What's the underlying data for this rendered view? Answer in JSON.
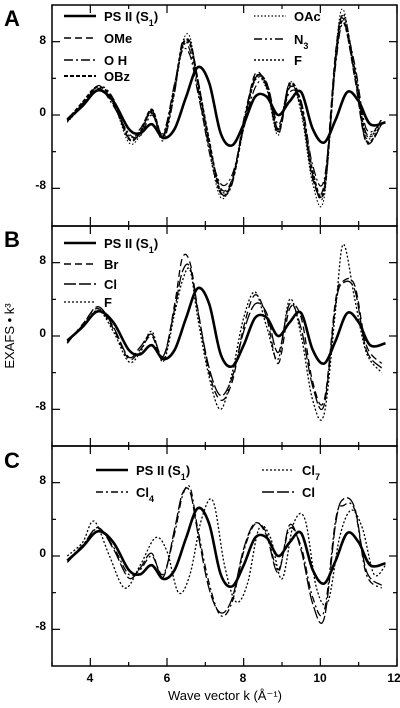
{
  "chart_data": [
    {
      "type": "line",
      "panel_label": "A",
      "xlim": [
        3,
        12
      ],
      "ylim": [
        -12,
        12
      ],
      "yticks": [
        "8",
        "0",
        "-8"
      ],
      "legend_placement": "top",
      "series": [
        {
          "name": "PS II (S₁)",
          "style": "solid-thick",
          "x": [
            3.4,
            3.8,
            4.2,
            4.6,
            5.0,
            5.3,
            5.6,
            5.9,
            6.2,
            6.5,
            6.8,
            7.1,
            7.4,
            7.7,
            8.0,
            8.3,
            8.6,
            8.9,
            9.2,
            9.5,
            9.8,
            10.1,
            10.4,
            10.7,
            11.0,
            11.3,
            11.7
          ],
          "y": [
            -0.5,
            1.0,
            2.7,
            1.5,
            -1.5,
            -2.0,
            -1.0,
            -2.5,
            -1.5,
            2.0,
            5.2,
            3.5,
            -2.0,
            -3.3,
            -1.0,
            2.0,
            2.0,
            0.0,
            1.5,
            2.5,
            -1.5,
            -3.0,
            -0.5,
            2.5,
            1.5,
            -1.0,
            -0.8
          ]
        },
        {
          "name": "OMe",
          "style": "dashed",
          "x": [
            3.4,
            3.8,
            4.2,
            4.6,
            5.0,
            5.3,
            5.6,
            5.9,
            6.2,
            6.4,
            6.6,
            6.8,
            7.1,
            7.4,
            7.7,
            8.0,
            8.3,
            8.6,
            8.9,
            9.2,
            9.5,
            9.8,
            10.1,
            10.4,
            10.6,
            10.9,
            11.2,
            11.6
          ],
          "y": [
            -0.6,
            1.2,
            2.9,
            1.2,
            -2.5,
            -2.0,
            0.5,
            -2.2,
            3.0,
            7.5,
            8.0,
            4.0,
            -3.0,
            -8.0,
            -7.0,
            -1.0,
            4.5,
            3.0,
            -2.0,
            3.0,
            1.0,
            -7.0,
            -7.5,
            7.0,
            10.5,
            4.0,
            -3.0,
            -1.0
          ]
        },
        {
          "name": "N₃",
          "style": "dash-dot-dot",
          "x": [
            3.4,
            3.8,
            4.2,
            4.6,
            5.0,
            5.3,
            5.6,
            5.9,
            6.2,
            6.4,
            6.6,
            6.8,
            7.1,
            7.4,
            7.7,
            8.0,
            8.3,
            8.6,
            8.9,
            9.2,
            9.5,
            9.8,
            10.1,
            10.4,
            10.6,
            10.9,
            11.2,
            11.6
          ],
          "y": [
            -0.7,
            1.0,
            3.2,
            1.8,
            -2.5,
            -1.5,
            0.3,
            -2.8,
            2.5,
            8.0,
            7.0,
            3.0,
            -4.0,
            -8.5,
            -7.5,
            -0.5,
            4.0,
            3.5,
            -1.5,
            3.5,
            0.5,
            -6.5,
            -8.5,
            6.0,
            11.0,
            5.0,
            -2.0,
            -0.5
          ]
        },
        {
          "name": "O H",
          "style": "long-dash-dot",
          "x": [
            3.4,
            3.8,
            4.2,
            4.6,
            5.0,
            5.3,
            5.6,
            5.9,
            6.2,
            6.4,
            6.6,
            6.8,
            7.1,
            7.4,
            7.7,
            8.0,
            8.3,
            8.6,
            8.9,
            9.2,
            9.5,
            9.8,
            10.1,
            10.4,
            10.6,
            10.9,
            11.2,
            11.6
          ],
          "y": [
            -0.4,
            1.3,
            3.0,
            1.0,
            -2.0,
            -2.3,
            0.0,
            -2.0,
            3.5,
            7.0,
            6.5,
            2.5,
            -3.5,
            -7.5,
            -6.5,
            -1.5,
            3.0,
            3.5,
            -1.0,
            2.5,
            1.5,
            -5.5,
            -7.0,
            5.5,
            10.0,
            5.5,
            -1.5,
            -0.8
          ]
        },
        {
          "name": "F",
          "style": "dotted",
          "x": [
            3.4,
            3.8,
            4.2,
            4.6,
            5.0,
            5.3,
            5.6,
            5.9,
            6.2,
            6.4,
            6.6,
            6.8,
            7.1,
            7.4,
            7.7,
            8.0,
            8.3,
            8.6,
            8.9,
            9.2,
            9.5,
            9.8,
            10.1,
            10.4,
            10.6,
            10.9,
            11.2,
            11.6
          ],
          "y": [
            -0.5,
            1.1,
            2.8,
            1.4,
            -2.2,
            -1.8,
            0.2,
            -2.4,
            2.8,
            7.2,
            7.6,
            3.5,
            -3.2,
            -8.2,
            -7.2,
            -1.0,
            3.8,
            3.2,
            -1.8,
            3.2,
            0.8,
            -6.8,
            -8.0,
            6.5,
            10.8,
            4.8,
            -2.2,
            -0.6
          ]
        },
        {
          "name": "OAc",
          "style": "fine-dotted",
          "x": [
            3.4,
            3.8,
            4.2,
            4.6,
            5.0,
            5.3,
            5.6,
            5.9,
            6.2,
            6.4,
            6.6,
            6.8,
            7.1,
            7.4,
            7.7,
            8.0,
            8.3,
            8.6,
            8.9,
            9.2,
            9.5,
            9.8,
            10.1,
            10.4,
            10.6,
            10.9,
            11.2,
            11.6
          ],
          "y": [
            -0.8,
            1.0,
            2.7,
            1.3,
            -3.0,
            -2.2,
            0.4,
            -2.6,
            2.6,
            7.8,
            8.5,
            3.2,
            -3.8,
            -9.0,
            -7.0,
            -0.8,
            4.2,
            2.8,
            -2.2,
            3.6,
            0.2,
            -7.5,
            -9.0,
            6.8,
            11.5,
            4.2,
            -2.5,
            -0.4
          ]
        },
        {
          "name": "OBz",
          "style": "heavy-dashed",
          "x": [
            3.4,
            3.8,
            4.2,
            4.6,
            5.0,
            5.3,
            5.6,
            5.9,
            6.2,
            6.4,
            6.6,
            6.8,
            7.1,
            7.4,
            7.7,
            8.0,
            8.3,
            8.6,
            8.9,
            9.2,
            9.5,
            9.8,
            10.1,
            10.4,
            10.6,
            10.9,
            11.2,
            11.6
          ],
          "y": [
            -0.6,
            1.4,
            3.1,
            1.6,
            -2.6,
            -1.9,
            0.6,
            -2.3,
            3.2,
            7.6,
            7.8,
            3.8,
            -2.8,
            -8.5,
            -7.3,
            -1.2,
            4.0,
            3.4,
            -1.6,
            3.4,
            1.2,
            -6.2,
            -8.2,
            6.2,
            10.2,
            4.5,
            -2.8,
            -0.9
          ]
        }
      ]
    },
    {
      "type": "line",
      "panel_label": "B",
      "xlim": [
        3,
        12
      ],
      "ylim": [
        -12,
        12
      ],
      "yticks": [
        "8",
        "0",
        "-8"
      ],
      "legend_placement": "top-left",
      "series": [
        {
          "name": "PS II (S₁)",
          "style": "solid-thick",
          "x": [
            3.4,
            3.8,
            4.2,
            4.6,
            5.0,
            5.3,
            5.6,
            5.9,
            6.2,
            6.5,
            6.8,
            7.1,
            7.4,
            7.7,
            8.0,
            8.3,
            8.6,
            8.9,
            9.2,
            9.5,
            9.8,
            10.1,
            10.4,
            10.7,
            11.0,
            11.3,
            11.7
          ],
          "y": [
            -0.5,
            1.0,
            2.7,
            1.5,
            -1.5,
            -2.0,
            -1.0,
            -2.5,
            -1.5,
            2.0,
            5.2,
            3.5,
            -2.0,
            -3.3,
            -1.0,
            2.0,
            2.0,
            0.0,
            1.5,
            2.5,
            -1.5,
            -3.0,
            -0.5,
            2.5,
            1.5,
            -1.0,
            -0.8
          ]
        },
        {
          "name": "Br",
          "style": "dashed",
          "x": [
            3.4,
            3.8,
            4.2,
            4.6,
            5.0,
            5.3,
            5.6,
            5.9,
            6.2,
            6.4,
            6.6,
            6.8,
            7.1,
            7.4,
            7.7,
            8.0,
            8.3,
            8.6,
            8.9,
            9.2,
            9.5,
            9.8,
            10.1,
            10.4,
            10.6,
            10.9,
            11.2,
            11.6
          ],
          "y": [
            -0.8,
            1.3,
            3.0,
            0.8,
            -2.5,
            -1.5,
            0.0,
            -2.5,
            3.5,
            8.5,
            8.0,
            3.0,
            -4.0,
            -7.0,
            -5.0,
            1.0,
            4.5,
            2.0,
            -3.0,
            3.0,
            2.0,
            -5.0,
            -7.0,
            4.0,
            6.0,
            5.5,
            -1.0,
            -3.0
          ]
        },
        {
          "name": "Cl",
          "style": "long-dash",
          "x": [
            3.4,
            3.8,
            4.2,
            4.6,
            5.0,
            5.3,
            5.6,
            5.9,
            6.2,
            6.4,
            6.6,
            6.8,
            7.1,
            7.4,
            7.7,
            8.0,
            8.3,
            8.6,
            8.9,
            9.2,
            9.5,
            9.8,
            10.1,
            10.4,
            10.6,
            10.9,
            11.2,
            11.6
          ],
          "y": [
            -0.7,
            1.2,
            3.2,
            1.0,
            -2.3,
            -1.2,
            0.2,
            -2.2,
            3.0,
            7.0,
            7.5,
            2.8,
            -3.5,
            -6.5,
            -4.5,
            0.5,
            3.5,
            2.5,
            -1.8,
            3.5,
            0.8,
            -5.5,
            -7.5,
            3.5,
            5.8,
            5.0,
            -1.5,
            -3.5
          ]
        },
        {
          "name": "F",
          "style": "dotted",
          "x": [
            3.4,
            3.8,
            4.2,
            4.6,
            5.0,
            5.3,
            5.6,
            5.9,
            6.2,
            6.4,
            6.6,
            6.8,
            7.1,
            7.4,
            7.7,
            8.0,
            8.3,
            8.6,
            8.9,
            9.2,
            9.5,
            9.8,
            10.1,
            10.4,
            10.6,
            10.9,
            11.2,
            11.6
          ],
          "y": [
            -0.6,
            1.0,
            2.8,
            0.5,
            -2.8,
            -1.8,
            0.5,
            -2.8,
            2.5,
            6.0,
            7.2,
            2.0,
            -4.5,
            -8.0,
            -4.0,
            2.0,
            4.8,
            1.0,
            -2.5,
            4.0,
            0.0,
            -7.0,
            -8.5,
            3.0,
            10.0,
            4.0,
            -1.8,
            -4.0
          ]
        }
      ]
    },
    {
      "type": "line",
      "panel_label": "C",
      "xlim": [
        3,
        12
      ],
      "ylim": [
        -12,
        12
      ],
      "yticks": [
        "8",
        "0",
        "-8"
      ],
      "legend_placement": "top",
      "series": [
        {
          "name": "PS II (S₁)",
          "style": "solid-thick",
          "x": [
            3.4,
            3.8,
            4.2,
            4.6,
            5.0,
            5.3,
            5.6,
            5.9,
            6.2,
            6.5,
            6.8,
            7.1,
            7.4,
            7.7,
            8.0,
            8.3,
            8.6,
            8.9,
            9.2,
            9.5,
            9.8,
            10.1,
            10.4,
            10.7,
            11.0,
            11.3,
            11.7
          ],
          "y": [
            -0.5,
            1.0,
            2.7,
            1.5,
            -1.5,
            -2.0,
            -1.0,
            -2.5,
            -1.5,
            2.0,
            5.2,
            3.5,
            -2.0,
            -3.3,
            -1.0,
            2.0,
            2.0,
            0.0,
            1.5,
            2.5,
            -1.5,
            -3.0,
            -0.5,
            2.5,
            1.5,
            -1.0,
            -0.8
          ]
        },
        {
          "name": "Cl₇",
          "style": "dotted",
          "x": [
            3.4,
            3.8,
            4.1,
            4.5,
            4.9,
            5.3,
            5.7,
            6.0,
            6.3,
            6.6,
            6.9,
            7.2,
            7.5,
            7.8,
            8.1,
            8.4,
            8.7,
            9.0,
            9.3,
            9.6,
            9.9,
            10.2,
            10.5,
            10.8,
            11.1,
            11.4,
            11.7
          ],
          "y": [
            0.0,
            1.5,
            3.8,
            0.0,
            -3.5,
            -1.0,
            2.0,
            0.5,
            -4.0,
            -2.0,
            4.0,
            6.0,
            -1.0,
            -5.0,
            -3.0,
            3.0,
            2.0,
            -2.5,
            3.5,
            4.0,
            -3.5,
            -5.0,
            2.0,
            5.0,
            3.0,
            -2.0,
            -1.0
          ]
        },
        {
          "name": "Cl₄",
          "style": "dash-dot",
          "x": [
            3.4,
            3.8,
            4.2,
            4.6,
            5.0,
            5.3,
            5.6,
            5.9,
            6.2,
            6.4,
            6.6,
            6.8,
            7.1,
            7.4,
            7.7,
            8.0,
            8.3,
            8.6,
            8.9,
            9.2,
            9.5,
            9.8,
            10.1,
            10.4,
            10.6,
            10.9,
            11.2,
            11.6
          ],
          "y": [
            -0.5,
            1.2,
            3.0,
            1.0,
            -2.0,
            -1.5,
            0.0,
            -2.0,
            2.5,
            6.5,
            7.5,
            3.0,
            -3.0,
            -6.5,
            -5.0,
            0.5,
            3.5,
            2.5,
            -1.5,
            3.0,
            1.0,
            -4.5,
            -6.0,
            4.0,
            5.5,
            5.0,
            -2.0,
            -3.5
          ]
        },
        {
          "name": "Cl",
          "style": "long-dash",
          "x": [
            3.4,
            3.8,
            4.2,
            4.6,
            5.0,
            5.3,
            5.6,
            5.9,
            6.2,
            6.4,
            6.6,
            6.8,
            7.1,
            7.4,
            7.7,
            8.0,
            8.3,
            8.6,
            8.9,
            9.2,
            9.5,
            9.8,
            10.1,
            10.4,
            10.6,
            10.9,
            11.2,
            11.6
          ],
          "y": [
            -0.7,
            1.1,
            3.1,
            0.8,
            -2.4,
            -1.3,
            0.3,
            -2.3,
            3.0,
            6.8,
            7.0,
            2.6,
            -3.6,
            -6.2,
            -4.6,
            0.8,
            3.6,
            2.2,
            -1.8,
            3.4,
            0.6,
            -5.2,
            -6.8,
            3.6,
            6.2,
            5.2,
            -1.6,
            -3.2
          ]
        }
      ]
    }
  ],
  "axes": {
    "xlabel": "Wave vector k (Å⁻¹)",
    "ylabel": "EXAFS • k³",
    "xticks": [
      "4",
      "6",
      "8",
      "10",
      "12"
    ]
  },
  "legends": {
    "A": {
      "ps2": "PS II (S",
      "ps2_sub": "1",
      "ome": "OMe",
      "oh": "O H",
      "obz": "OBz",
      "oac": "OAc",
      "n3": "N",
      "n3_sub": "3",
      "f": "F"
    },
    "B": {
      "ps2": "PS II (S",
      "ps2_sub": "1",
      "br": "Br",
      "cl": "Cl",
      "f": "F"
    },
    "C": {
      "ps2": "PS II (S",
      "ps2_sub": "1",
      "cl7": "Cl",
      "cl7_sub": "7",
      "cl4": "Cl",
      "cl4_sub": "4",
      "cl": "Cl"
    }
  }
}
